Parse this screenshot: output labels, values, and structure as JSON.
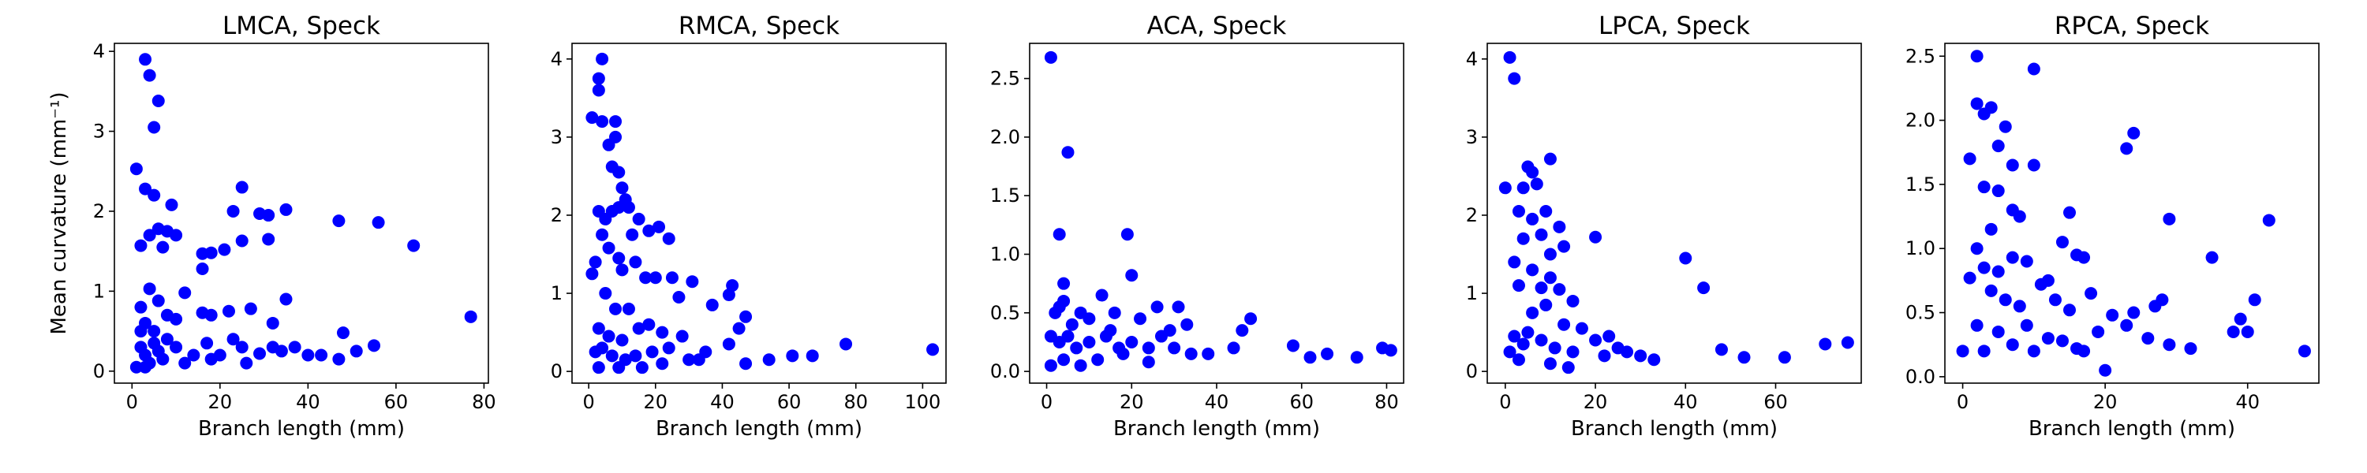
{
  "chart_data": [
    {
      "type": "scatter",
      "title": "LMCA, Speck",
      "x_label": "Branch length (mm)",
      "y_label": "Mean curvature (mm⁻¹)",
      "color": "#0000ff",
      "xlim": [
        -4,
        81
      ],
      "xticks": [
        0,
        20,
        40,
        60,
        80
      ],
      "ylim": [
        -0.15,
        4.1
      ],
      "yticks": [
        0,
        1,
        2,
        3,
        4
      ],
      "x": [
        3,
        4,
        6,
        5,
        1,
        3,
        5,
        9,
        25,
        23,
        21,
        18,
        2,
        4,
        6,
        8,
        10,
        7,
        16,
        16,
        25,
        29,
        31,
        35,
        31,
        47,
        56,
        64,
        77,
        4,
        6,
        12,
        2,
        3,
        5,
        8,
        10,
        16,
        18,
        22,
        27,
        35,
        32,
        48,
        2,
        3,
        4,
        6,
        8,
        10,
        14,
        17,
        20,
        23,
        25,
        29,
        32,
        37,
        40,
        43,
        47,
        51,
        55,
        1,
        3,
        7,
        12,
        18,
        26,
        34,
        2,
        5
      ],
      "values": [
        3.9,
        3.7,
        3.38,
        3.05,
        2.53,
        2.28,
        2.2,
        2.08,
        2.3,
        2.0,
        1.52,
        1.48,
        1.57,
        1.7,
        1.78,
        1.75,
        1.7,
        1.55,
        1.47,
        1.28,
        1.63,
        1.97,
        1.95,
        2.02,
        1.65,
        1.88,
        1.86,
        1.57,
        0.68,
        1.03,
        0.88,
        0.98,
        0.8,
        0.6,
        0.5,
        0.7,
        0.65,
        0.73,
        0.7,
        0.75,
        0.78,
        0.9,
        0.6,
        0.48,
        0.3,
        0.2,
        0.1,
        0.25,
        0.4,
        0.3,
        0.2,
        0.35,
        0.2,
        0.4,
        0.3,
        0.22,
        0.3,
        0.3,
        0.2,
        0.2,
        0.15,
        0.25,
        0.32,
        0.05,
        0.05,
        0.15,
        0.1,
        0.15,
        0.1,
        0.25,
        0.5,
        0.35
      ]
    },
    {
      "type": "scatter",
      "title": "RMCA, Speck",
      "x_label": "Branch length (mm)",
      "color": "#0000ff",
      "xlim": [
        -5,
        107
      ],
      "xticks": [
        0,
        20,
        40,
        60,
        80,
        100
      ],
      "ylim": [
        -0.15,
        4.2
      ],
      "yticks": [
        0,
        1,
        2,
        3,
        4
      ],
      "x": [
        4,
        3,
        3,
        1,
        4,
        8,
        8,
        6,
        7,
        9,
        10,
        11,
        3,
        5,
        7,
        9,
        12,
        15,
        18,
        21,
        24,
        13,
        4,
        2,
        1,
        6,
        9,
        10,
        14,
        17,
        20,
        25,
        31,
        43,
        42,
        37,
        47,
        45,
        27,
        5,
        8,
        12,
        3,
        6,
        10,
        15,
        18,
        22,
        28,
        2,
        4,
        7,
        11,
        14,
        19,
        24,
        30,
        35,
        42,
        47,
        54,
        61,
        67,
        77,
        103,
        3,
        9,
        16,
        22,
        33
      ],
      "values": [
        4.0,
        3.75,
        3.6,
        3.25,
        3.2,
        3.2,
        3.0,
        2.9,
        2.62,
        2.55,
        2.35,
        2.2,
        2.05,
        1.95,
        2.05,
        2.1,
        2.1,
        1.95,
        1.8,
        1.85,
        1.7,
        1.75,
        1.75,
        1.4,
        1.25,
        1.58,
        1.45,
        1.3,
        1.4,
        1.2,
        1.2,
        1.2,
        1.15,
        1.1,
        0.98,
        0.85,
        0.7,
        0.55,
        0.95,
        1.0,
        0.8,
        0.8,
        0.55,
        0.45,
        0.4,
        0.55,
        0.6,
        0.5,
        0.45,
        0.25,
        0.3,
        0.2,
        0.15,
        0.2,
        0.25,
        0.3,
        0.15,
        0.25,
        0.35,
        0.1,
        0.15,
        0.2,
        0.2,
        0.35,
        0.28,
        0.05,
        0.05,
        0.05,
        0.1,
        0.15
      ]
    },
    {
      "type": "scatter",
      "title": "ACA, Speck",
      "x_label": "Branch length (mm)",
      "color": "#0000ff",
      "xlim": [
        -4,
        84
      ],
      "xticks": [
        0,
        20,
        40,
        60,
        80
      ],
      "ylim": [
        -0.1,
        2.8
      ],
      "yticks": [
        {
          "value": 0,
          "label": "0.0"
        },
        0.5,
        {
          "value": 1,
          "label": "1.0"
        },
        1.5,
        {
          "value": 2,
          "label": "2.0"
        },
        2.5
      ],
      "x": [
        1,
        5,
        3,
        19,
        20,
        4,
        2,
        3,
        4,
        8,
        10,
        13,
        16,
        22,
        26,
        31,
        29,
        33,
        48,
        46,
        1,
        3,
        5,
        7,
        10,
        14,
        17,
        20,
        24,
        27,
        30,
        34,
        38,
        44,
        58,
        62,
        66,
        73,
        79,
        81,
        1,
        4,
        8,
        12,
        18,
        24,
        6,
        15
      ],
      "values": [
        2.68,
        1.87,
        1.17,
        1.17,
        0.82,
        0.75,
        0.5,
        0.55,
        0.6,
        0.5,
        0.45,
        0.65,
        0.5,
        0.45,
        0.55,
        0.55,
        0.35,
        0.4,
        0.45,
        0.35,
        0.3,
        0.25,
        0.3,
        0.2,
        0.25,
        0.3,
        0.2,
        0.25,
        0.2,
        0.3,
        0.2,
        0.15,
        0.15,
        0.2,
        0.22,
        0.12,
        0.15,
        0.12,
        0.2,
        0.18,
        0.05,
        0.1,
        0.05,
        0.1,
        0.15,
        0.08,
        0.4,
        0.35
      ]
    },
    {
      "type": "scatter",
      "title": "LPCA, Speck",
      "x_label": "Branch length (mm)",
      "color": "#0000ff",
      "xlim": [
        -4,
        79
      ],
      "xticks": [
        0,
        20,
        40,
        60
      ],
      "ylim": [
        -0.15,
        4.2
      ],
      "yticks": [
        0,
        1,
        2,
        3,
        4
      ],
      "x": [
        1,
        2,
        5,
        6,
        10,
        7,
        4,
        0,
        3,
        6,
        9,
        12,
        8,
        4,
        2,
        10,
        13,
        20,
        40,
        44,
        6,
        10,
        3,
        8,
        12,
        15,
        9,
        6,
        13,
        17,
        5,
        2,
        8,
        4,
        1,
        11,
        15,
        20,
        23,
        27,
        30,
        33,
        22,
        48,
        53,
        62,
        71,
        76,
        10,
        14,
        3,
        25
      ],
      "values": [
        4.02,
        3.75,
        2.62,
        2.55,
        2.72,
        2.4,
        2.35,
        2.35,
        2.05,
        1.95,
        2.05,
        1.85,
        1.75,
        1.7,
        1.4,
        1.5,
        1.6,
        1.72,
        1.45,
        1.07,
        1.3,
        1.2,
        1.1,
        1.07,
        1.05,
        0.9,
        0.85,
        0.75,
        0.6,
        0.55,
        0.5,
        0.45,
        0.4,
        0.35,
        0.25,
        0.3,
        0.25,
        0.4,
        0.45,
        0.25,
        0.2,
        0.15,
        0.2,
        0.28,
        0.18,
        0.18,
        0.35,
        0.37,
        0.1,
        0.05,
        0.15,
        0.3
      ]
    },
    {
      "type": "scatter",
      "title": "RPCA, Speck",
      "x_label": "Branch length (mm)",
      "color": "#0000ff",
      "xlim": [
        -2.5,
        50
      ],
      "xticks": [
        0,
        20,
        40
      ],
      "ylim": [
        -0.05,
        2.6
      ],
      "yticks": [
        {
          "value": 0,
          "label": "0.0"
        },
        0.5,
        {
          "value": 1,
          "label": "1.0"
        },
        1.5,
        {
          "value": 2,
          "label": "2.0"
        },
        2.5
      ],
      "x": [
        2,
        10,
        2,
        3,
        4,
        6,
        5,
        23,
        24,
        1,
        7,
        10,
        3,
        5,
        7,
        8,
        15,
        4,
        14,
        16,
        29,
        43,
        35,
        17,
        2,
        3,
        5,
        7,
        9,
        11,
        12,
        1,
        4,
        6,
        8,
        13,
        15,
        18,
        21,
        24,
        27,
        28,
        41,
        39,
        2,
        5,
        9,
        12,
        14,
        16,
        19,
        23,
        26,
        29,
        32,
        38,
        40,
        48,
        0,
        3,
        7,
        10,
        20,
        17
      ],
      "values": [
        2.5,
        2.4,
        2.13,
        2.05,
        2.1,
        1.95,
        1.8,
        1.78,
        1.9,
        1.7,
        1.65,
        1.65,
        1.48,
        1.45,
        1.3,
        1.25,
        1.28,
        1.15,
        1.05,
        0.95,
        1.23,
        1.22,
        0.93,
        0.93,
        1.0,
        0.85,
        0.82,
        0.93,
        0.9,
        0.72,
        0.75,
        0.77,
        0.67,
        0.6,
        0.55,
        0.6,
        0.52,
        0.65,
        0.48,
        0.5,
        0.55,
        0.6,
        0.6,
        0.45,
        0.4,
        0.35,
        0.4,
        0.3,
        0.28,
        0.22,
        0.35,
        0.4,
        0.3,
        0.25,
        0.22,
        0.35,
        0.35,
        0.2,
        0.2,
        0.2,
        0.25,
        0.2,
        0.05,
        0.2
      ]
    }
  ]
}
